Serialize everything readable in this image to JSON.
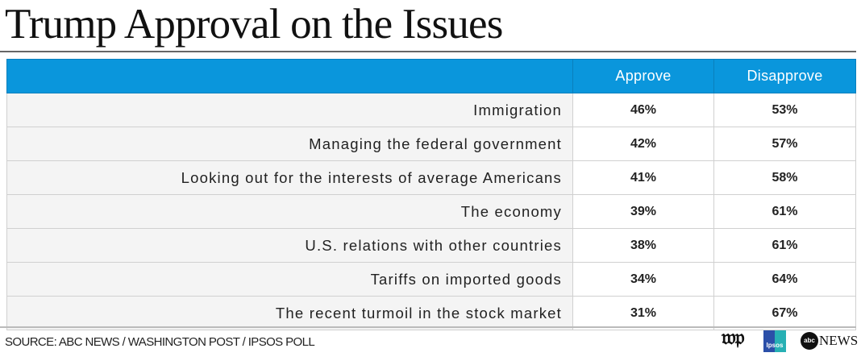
{
  "title": "Trump Approval on the Issues",
  "chart_data": {
    "type": "table",
    "title": "Trump Approval on the Issues",
    "columns": [
      "",
      "Approve",
      "Disapprove"
    ],
    "rows": [
      {
        "issue": "Immigration",
        "approve": "46%",
        "disapprove": "53%"
      },
      {
        "issue": "Managing the federal government",
        "approve": "42%",
        "disapprove": "57%"
      },
      {
        "issue": "Looking out for the interests of average Americans",
        "approve": "41%",
        "disapprove": "58%"
      },
      {
        "issue": "The economy",
        "approve": "39%",
        "disapprove": "61%"
      },
      {
        "issue": "U.S. relations with other countries",
        "approve": "38%",
        "disapprove": "61%"
      },
      {
        "issue": "Tariffs on imported goods",
        "approve": "34%",
        "disapprove": "64%"
      },
      {
        "issue": "The recent turmoil in the stock market",
        "approve": "31%",
        "disapprove": "67%"
      }
    ],
    "header_color": "#0a96dc"
  },
  "footer": {
    "source": "SOURCE: ABC NEWS / WASHINGTON POST / IPSOS POLL",
    "logos": {
      "wp": "wp",
      "ipsos": "Ipsos",
      "abc": "abc",
      "abc_news": "NEWS"
    }
  }
}
